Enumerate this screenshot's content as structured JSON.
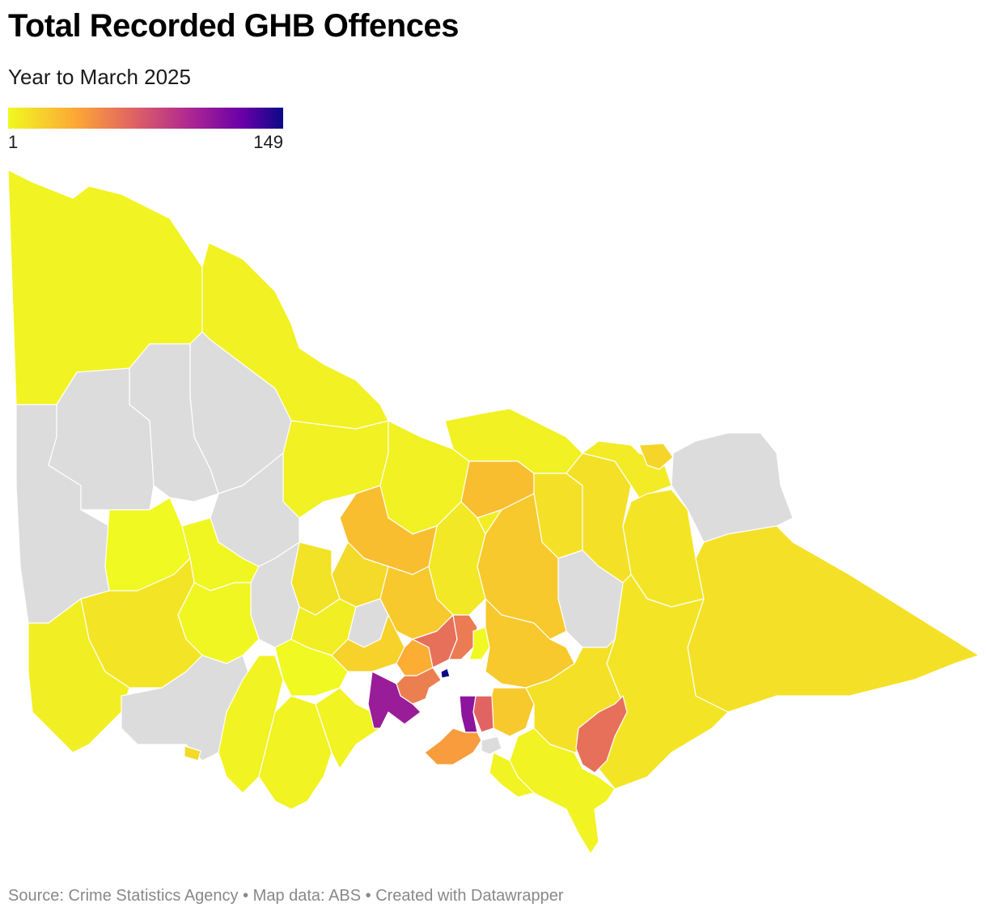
{
  "header": {
    "title": "Total Recorded GHB Offences",
    "subtitle": "Year to March 2025"
  },
  "legend": {
    "min_label": "1",
    "max_label": "149",
    "min_value": 1,
    "max_value": 149,
    "scale_colors": [
      "#f0f921",
      "#fca636",
      "#e16462",
      "#b12a90",
      "#6a00a8",
      "#0d0887"
    ],
    "no_data_color": "#dcdcdc"
  },
  "map": {
    "region_shown": "Victoria, Australia (Local Government Areas)",
    "regions": [
      {
        "id": "mildura",
        "value": 3
      },
      {
        "id": "swan-hill",
        "value": 4
      },
      {
        "id": "buloke",
        "value": null
      },
      {
        "id": "yarriambiack",
        "value": null
      },
      {
        "id": "hindmarsh",
        "value": null
      },
      {
        "id": "west-wimmera",
        "value": null
      },
      {
        "id": "horsham",
        "value": 1
      },
      {
        "id": "gannawarra",
        "value": 4
      },
      {
        "id": "loddon",
        "value": null
      },
      {
        "id": "campaspe",
        "value": 4
      },
      {
        "id": "moira",
        "value": 4
      },
      {
        "id": "greater-shepparton",
        "value": 22
      },
      {
        "id": "benalla",
        "value": 10
      },
      {
        "id": "wangaratta",
        "value": 10
      },
      {
        "id": "indigo",
        "value": 6
      },
      {
        "id": "wodonga",
        "value": 14
      },
      {
        "id": "towong",
        "value": null
      },
      {
        "id": "alpine",
        "value": 8
      },
      {
        "id": "east-gippsland",
        "value": 10
      },
      {
        "id": "wellington",
        "value": 8
      },
      {
        "id": "mansfield",
        "value": null
      },
      {
        "id": "murrindindi",
        "value": 18
      },
      {
        "id": "mitchell",
        "value": 7
      },
      {
        "id": "strathbogie",
        "value": 5
      },
      {
        "id": "greater-bendigo",
        "value": 22
      },
      {
        "id": "mount-alexander",
        "value": 12
      },
      {
        "id": "central-goldfields",
        "value": 9
      },
      {
        "id": "northern-grampians",
        "value": 2
      },
      {
        "id": "ararat",
        "value": 2
      },
      {
        "id": "pyrenees",
        "value": null
      },
      {
        "id": "ballarat",
        "value": 5
      },
      {
        "id": "hepburn",
        "value": null
      },
      {
        "id": "macedon-ranges",
        "value": 18
      },
      {
        "id": "moorabool",
        "value": 15
      },
      {
        "id": "golden-plains",
        "value": 1
      },
      {
        "id": "southern-grampians",
        "value": 8
      },
      {
        "id": "glenelg",
        "value": 5
      },
      {
        "id": "moyne",
        "value": null
      },
      {
        "id": "corangamite",
        "value": 3
      },
      {
        "id": "colac-otway",
        "value": 3
      },
      {
        "id": "surf-coast",
        "value": 3
      },
      {
        "id": "greater-geelong",
        "value": 100
      },
      {
        "id": "wyndham",
        "value": 48
      },
      {
        "id": "melton",
        "value": 28
      },
      {
        "id": "hume",
        "value": 55
      },
      {
        "id": "whittlesea",
        "value": 50
      },
      {
        "id": "nillumbik",
        "value": 1
      },
      {
        "id": "yarra-ranges",
        "value": 18
      },
      {
        "id": "cardinia",
        "value": 18
      },
      {
        "id": "casey",
        "value": 60
      },
      {
        "id": "frankston",
        "value": 105
      },
      {
        "id": "mornington-peninsula",
        "value": 35
      },
      {
        "id": "french-island",
        "value": null
      },
      {
        "id": "bass-coast",
        "value": 3
      },
      {
        "id": "baw-baw",
        "value": 10
      },
      {
        "id": "latrobe",
        "value": 55
      },
      {
        "id": "south-gippsland",
        "value": 3
      },
      {
        "id": "melbourne",
        "value": 149
      },
      {
        "id": "warrnambool",
        "value": 12
      }
    ]
  },
  "footer": {
    "source": "Source: Crime Statistics Agency • Map data: ABS • Created with Datawrapper"
  }
}
